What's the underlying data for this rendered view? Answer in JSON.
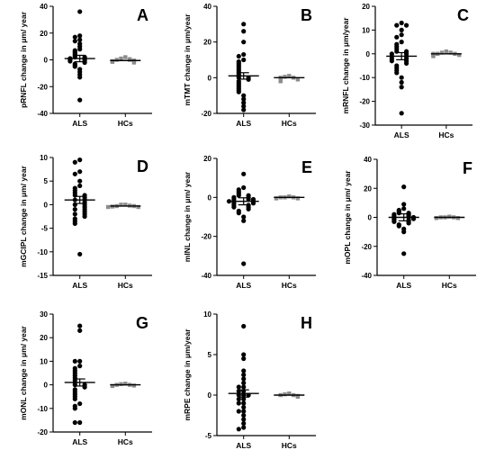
{
  "chart_data": [
    {
      "type": "scatter",
      "panel_label": "A",
      "ylabel": "pRNFL change in μm/ year",
      "ylim": [
        -40,
        40
      ],
      "yticks": [
        -40,
        -20,
        0,
        20,
        40
      ],
      "categories": [
        "ALS",
        "HCs"
      ],
      "series": [
        {
          "name": "ALS",
          "color": "#000000",
          "mean": 1,
          "values": [
            36,
            18,
            17,
            15,
            14,
            12,
            10,
            8,
            7,
            6,
            5,
            4,
            3,
            2,
            2,
            1,
            1,
            0,
            0,
            -1,
            -1,
            -2,
            -3,
            -4,
            -5,
            -7,
            -9,
            -11,
            -13,
            -30
          ]
        },
        {
          "name": "HCs",
          "color": "#8c8c8c",
          "mean": -0.5,
          "values": [
            2,
            1,
            0.5,
            0,
            0,
            -0.5,
            -1,
            -1,
            -1.5,
            -2
          ]
        }
      ]
    },
    {
      "type": "scatter",
      "panel_label": "B",
      "ylabel": "mTMT change in μm/year",
      "ylim": [
        -20,
        40
      ],
      "yticks": [
        -20,
        0,
        20,
        40
      ],
      "categories": [
        "ALS",
        "HCs"
      ],
      "series": [
        {
          "name": "ALS",
          "color": "#000000",
          "mean": 1,
          "values": [
            30,
            26,
            20,
            13,
            12,
            10,
            9,
            8,
            7,
            6,
            5,
            4,
            3,
            2,
            1,
            0,
            0,
            -1,
            -2,
            -3,
            -4,
            -5,
            -6,
            -7,
            -8,
            -10,
            -12,
            -14,
            -16,
            -18
          ]
        },
        {
          "name": "HCs",
          "color": "#8c8c8c",
          "mean": 0,
          "values": [
            1,
            0.5,
            0,
            0,
            -0.5,
            -1,
            -1,
            -1.5,
            -2
          ]
        }
      ]
    },
    {
      "type": "scatter",
      "panel_label": "C",
      "ylabel": "mRNFL change in μm/year",
      "ylim": [
        -30,
        20
      ],
      "yticks": [
        -30,
        -20,
        -10,
        0,
        10,
        20
      ],
      "categories": [
        "ALS",
        "HCs"
      ],
      "series": [
        {
          "name": "ALS",
          "color": "#000000",
          "mean": -1,
          "values": [
            13,
            12,
            12,
            10,
            8,
            7,
            5,
            4,
            3,
            2,
            1,
            1,
            0,
            0,
            -1,
            -1,
            -2,
            -2,
            -3,
            -3,
            -4,
            -5,
            -6,
            -7,
            -8,
            -10,
            -12,
            -14,
            -25
          ]
        },
        {
          "name": "HCs",
          "color": "#8c8c8c",
          "mean": 0,
          "values": [
            1,
            0.5,
            0.5,
            0,
            0,
            0,
            -0.5,
            -0.5,
            -1
          ]
        }
      ]
    },
    {
      "type": "scatter",
      "panel_label": "D",
      "ylabel": "mGCIPL change in μm/ year",
      "ylim": [
        -15,
        10
      ],
      "yticks": [
        -15,
        -10,
        -5,
        0,
        5,
        10
      ],
      "categories": [
        "ALS",
        "HCs"
      ],
      "series": [
        {
          "name": "ALS",
          "color": "#000000",
          "mean": 1,
          "values": [
            9.5,
            9,
            7,
            6.5,
            5,
            4,
            3.5,
            3,
            2.5,
            2,
            2,
            1.5,
            1,
            1,
            0.5,
            0,
            0,
            -0.5,
            -1,
            -1,
            -1.5,
            -2,
            -2,
            -2.5,
            -3,
            -3.5,
            -4,
            -10.5
          ]
        },
        {
          "name": "HCs",
          "color": "#8c8c8c",
          "mean": -0.3,
          "values": [
            0,
            0,
            -0.2,
            -0.3,
            -0.3,
            -0.4,
            -0.5,
            -0.5
          ]
        }
      ]
    },
    {
      "type": "scatter",
      "panel_label": "E",
      "ylabel": "mINL change in μm/ year",
      "ylim": [
        -40,
        20
      ],
      "yticks": [
        -40,
        -20,
        0,
        20
      ],
      "categories": [
        "ALS",
        "HCs"
      ],
      "series": [
        {
          "name": "ALS",
          "color": "#000000",
          "mean": -2,
          "values": [
            12,
            5,
            4,
            3,
            2,
            1,
            1,
            0,
            0,
            -1,
            -1,
            -1,
            -2,
            -2,
            -2,
            -3,
            -3,
            -4,
            -4,
            -5,
            -5,
            -6,
            -7,
            -8,
            -10,
            -12,
            -34
          ]
        },
        {
          "name": "HCs",
          "color": "#8c8c8c",
          "mean": 0,
          "values": [
            0.5,
            0,
            0,
            0,
            -0.5,
            -0.5
          ]
        }
      ]
    },
    {
      "type": "scatter",
      "panel_label": "F",
      "ylabel": "mOPL change in μm/ year",
      "ylim": [
        -40,
        40
      ],
      "yticks": [
        -40,
        -20,
        0,
        20,
        40
      ],
      "categories": [
        "ALS",
        "HCs"
      ],
      "series": [
        {
          "name": "ALS",
          "color": "#000000",
          "mean": 0,
          "values": [
            21,
            9,
            6,
            5,
            4,
            3,
            3,
            2,
            2,
            1,
            1,
            0,
            0,
            0,
            -1,
            -1,
            -2,
            -2,
            -3,
            -3,
            -4,
            -5,
            -6,
            -8,
            -10,
            -25
          ]
        },
        {
          "name": "HCs",
          "color": "#8c8c8c",
          "mean": 0,
          "values": [
            0.5,
            0,
            0,
            0,
            -0.5,
            -0.5
          ]
        }
      ]
    },
    {
      "type": "scatter",
      "panel_label": "G",
      "ylabel": "mONL change in μm/ year",
      "ylim": [
        -20,
        30
      ],
      "yticks": [
        -20,
        -10,
        0,
        10,
        20,
        30
      ],
      "categories": [
        "ALS",
        "HCs"
      ],
      "series": [
        {
          "name": "ALS",
          "color": "#000000",
          "mean": 1,
          "values": [
            25,
            23,
            10,
            10,
            8,
            7,
            6,
            5,
            4,
            3,
            2,
            1,
            0,
            0,
            -1,
            -2,
            -3,
            -4,
            -5,
            -6,
            -8,
            -9,
            -10,
            -16,
            -16
          ]
        },
        {
          "name": "HCs",
          "color": "#8c8c8c",
          "mean": 0,
          "values": [
            0.5,
            0.3,
            0,
            0,
            -0.3,
            -0.5
          ]
        }
      ]
    },
    {
      "type": "scatter",
      "panel_label": "H",
      "ylabel": "mRPE change in μm/year",
      "ylim": [
        -5,
        10
      ],
      "yticks": [
        -5,
        0,
        5,
        10
      ],
      "categories": [
        "ALS",
        "HCs"
      ],
      "series": [
        {
          "name": "ALS",
          "color": "#000000",
          "mean": 0.2,
          "values": [
            8.5,
            5,
            4.5,
            3,
            2.5,
            2,
            1.5,
            1,
            1,
            0.5,
            0.5,
            0,
            0,
            0,
            -0.5,
            -0.5,
            -1,
            -1,
            -1.5,
            -2,
            -2,
            -2.5,
            -3,
            -3.5,
            -4,
            -4.2
          ]
        },
        {
          "name": "HCs",
          "color": "#8c8c8c",
          "mean": 0,
          "values": [
            0.2,
            0.1,
            0,
            0,
            -0.1,
            -0.2
          ]
        }
      ]
    }
  ]
}
